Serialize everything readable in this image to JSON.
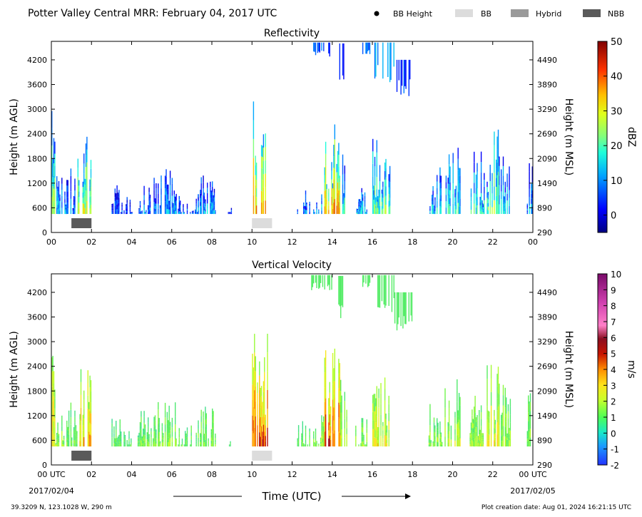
{
  "header": {
    "title": "Potter Valley Central MRR:  February 04, 2017 UTC",
    "legend": [
      {
        "label": "BB Height",
        "kind": "dot",
        "color": "#000000"
      },
      {
        "label": "BB",
        "kind": "box",
        "color": "#dcdcdc"
      },
      {
        "label": "Hybrid",
        "kind": "box",
        "color": "#9a9a9a"
      },
      {
        "label": "NBB",
        "kind": "box",
        "color": "#5a5a5a"
      }
    ]
  },
  "footer": {
    "location": "39.3209 N, 123.1028 W, 290 m",
    "created": "Plot creation date: Aug 01, 2024 16:21:15 UTC",
    "xlabel": "Time (UTC)",
    "start_date": "2017/02/04",
    "end_date": "2017/02/05"
  },
  "chart_data": [
    {
      "type": "heatmap",
      "title": "Reflectivity",
      "ylabel": "Height (m AGL)",
      "ylabel_right": "Height (m MSL)",
      "xlim": [
        0,
        24
      ],
      "ylim": [
        0,
        4650
      ],
      "x_ticks": [
        "00",
        "02",
        "04",
        "06",
        "08",
        "10",
        "12",
        "14",
        "16",
        "18",
        "20",
        "22",
        "00"
      ],
      "y_ticks": [
        "0",
        "600",
        "1200",
        "1800",
        "2400",
        "3000",
        "3600",
        "4200"
      ],
      "y_ticks_right": [
        "290",
        "890",
        "1490",
        "2090",
        "2690",
        "3290",
        "3890",
        "4490"
      ],
      "colorbar": {
        "label": "dBZ",
        "min": -5,
        "max": 50,
        "ticks": [
          "0",
          "10",
          "20",
          "30",
          "40",
          "50"
        ]
      },
      "bb_bars": [
        {
          "class": "NBB",
          "start": 1.0,
          "end": 2.0
        },
        {
          "class": "BB",
          "start": 10.0,
          "end": 11.0
        }
      ]
    },
    {
      "type": "heatmap",
      "title": "Vertical Velocity",
      "ylabel": "Height (m AGL)",
      "ylabel_right": "Height (m MSL)",
      "xlim": [
        0,
        24
      ],
      "ylim": [
        0,
        4650
      ],
      "x_ticks": [
        "00 UTC",
        "02",
        "04",
        "06",
        "08",
        "10",
        "12",
        "14",
        "16",
        "18",
        "20",
        "22",
        "00 UTC"
      ],
      "y_ticks": [
        "0",
        "600",
        "1200",
        "1800",
        "2400",
        "3000",
        "3600",
        "4200"
      ],
      "y_ticks_right": [
        "290",
        "890",
        "1490",
        "2090",
        "2690",
        "3290",
        "3890",
        "4490"
      ],
      "colorbar": {
        "label": "m/s",
        "min": -2,
        "max": 10,
        "ticks": [
          "-2",
          "-1",
          "0",
          "1",
          "2",
          "3",
          "4",
          "5",
          "6",
          "7",
          "8",
          "9",
          "10"
        ]
      },
      "bb_bars": [
        {
          "class": "NBB",
          "start": 1.0,
          "end": 2.0
        },
        {
          "class": "BB",
          "start": 10.0,
          "end": 11.0
        }
      ]
    }
  ],
  "echo_columns": [
    {
      "start": 0.0,
      "end": 0.2,
      "top": 3150,
      "int": 0.55
    },
    {
      "start": 0.2,
      "end": 0.7,
      "top": 1500,
      "int": 0.35
    },
    {
      "start": 0.7,
      "end": 1.3,
      "top": 1650,
      "int": 0.25
    },
    {
      "start": 1.3,
      "end": 2.0,
      "top": 2600,
      "int": 0.6
    },
    {
      "start": 3.0,
      "end": 3.5,
      "top": 1150,
      "int": 0.2
    },
    {
      "start": 3.6,
      "end": 4.0,
      "top": 900,
      "int": 0.2
    },
    {
      "start": 4.3,
      "end": 5.2,
      "top": 1350,
      "int": 0.25
    },
    {
      "start": 5.3,
      "end": 6.2,
      "top": 1600,
      "int": 0.3
    },
    {
      "start": 6.3,
      "end": 7.3,
      "top": 1000,
      "int": 0.25
    },
    {
      "start": 7.3,
      "end": 8.2,
      "top": 1450,
      "int": 0.3
    },
    {
      "start": 8.8,
      "end": 9.0,
      "top": 800,
      "int": 0.2
    },
    {
      "start": 10.0,
      "end": 10.8,
      "top": 3200,
      "int": 0.75
    },
    {
      "start": 12.2,
      "end": 12.9,
      "top": 1150,
      "int": 0.25
    },
    {
      "start": 13.0,
      "end": 13.6,
      "top": 1300,
      "int": 0.35
    },
    {
      "start": 13.6,
      "end": 14.4,
      "top": 2850,
      "int": 0.75
    },
    {
      "start": 14.4,
      "end": 14.8,
      "top": 2100,
      "int": 0.4
    },
    {
      "start": 15.0,
      "end": 15.8,
      "top": 1200,
      "int": 0.35
    },
    {
      "start": 16.0,
      "end": 16.9,
      "top": 2300,
      "int": 0.5
    },
    {
      "start": 18.8,
      "end": 19.5,
      "top": 1600,
      "int": 0.35
    },
    {
      "start": 19.6,
      "end": 20.4,
      "top": 2100,
      "int": 0.4
    },
    {
      "start": 20.8,
      "end": 21.6,
      "top": 2000,
      "int": 0.4
    },
    {
      "start": 21.7,
      "end": 22.3,
      "top": 2550,
      "int": 0.5
    },
    {
      "start": 22.3,
      "end": 22.9,
      "top": 2000,
      "int": 0.35
    },
    {
      "start": 23.7,
      "end": 24.0,
      "top": 1800,
      "int": 0.3
    }
  ],
  "echo_upper": [
    {
      "start": 12.9,
      "end": 14.0,
      "bottom": 4250,
      "top": 4620,
      "int": 0.2
    },
    {
      "start": 14.3,
      "end": 14.6,
      "bottom": 3400,
      "top": 4600,
      "int": 0.15
    },
    {
      "start": 15.5,
      "end": 15.9,
      "bottom": 4300,
      "top": 4620,
      "int": 0.2
    },
    {
      "start": 16.1,
      "end": 17.1,
      "bottom": 3600,
      "top": 4620,
      "int": 0.3
    },
    {
      "start": 17.1,
      "end": 18.0,
      "bottom": 3250,
      "top": 4200,
      "int": 0.2
    }
  ]
}
